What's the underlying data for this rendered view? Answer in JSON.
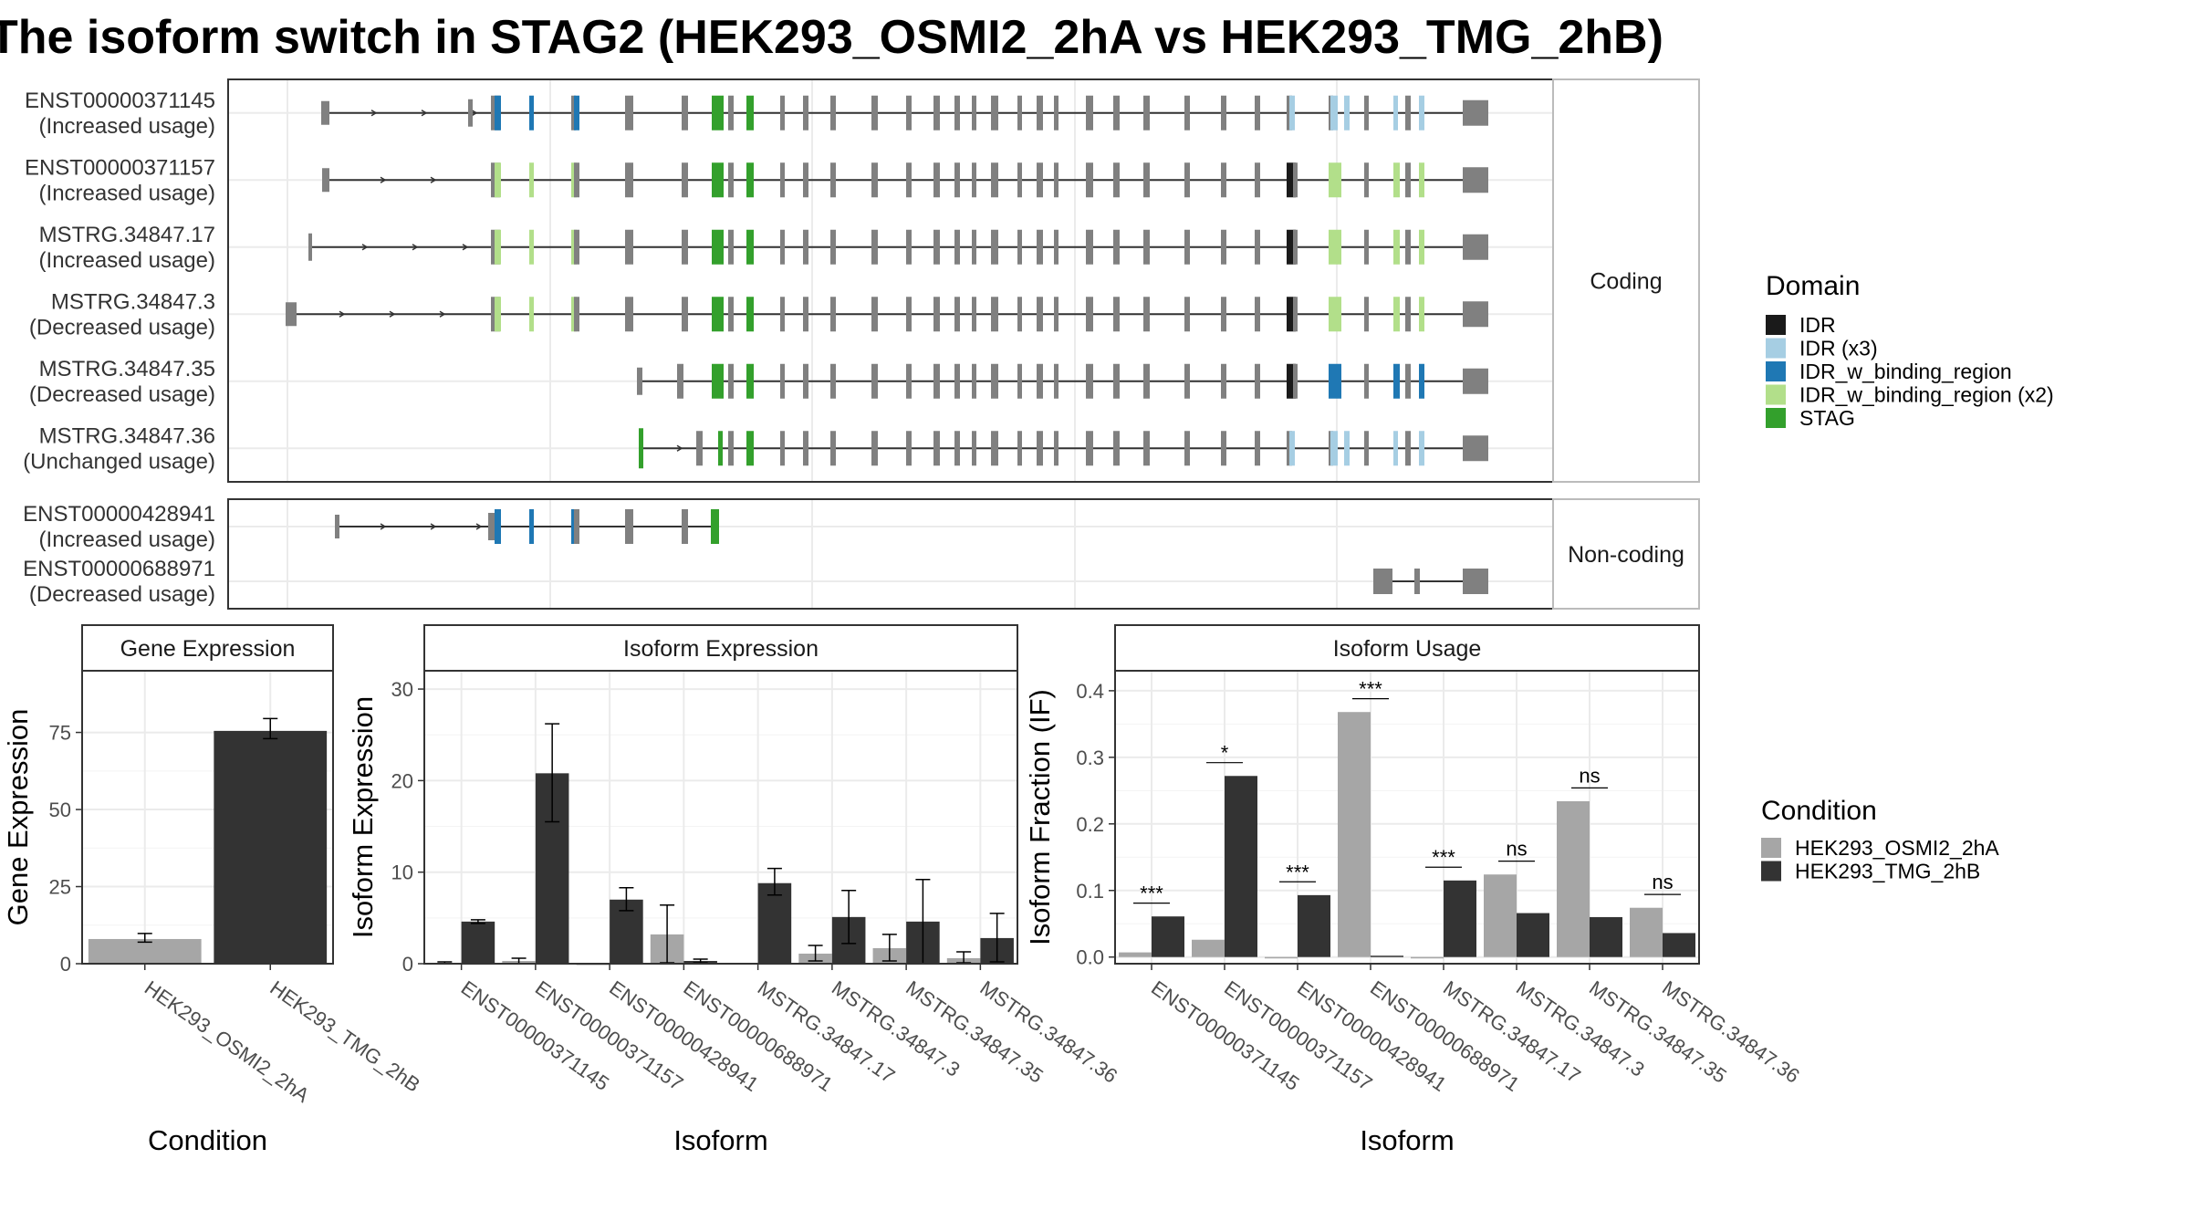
{
  "title": "The isoform switch in STAG2 (HEK293_OSMI2_2hA vs HEK293_TMG_2hB)",
  "colors": {
    "IDR": "#1a1a1a",
    "IDR (x3)": "#a6cee3",
    "IDR_w_binding_region": "#1f78b4",
    "IDR_w_binding_region (x2)": "#b2df8a",
    "STAG": "#33a02c",
    "exon": "#808080",
    "cond_a": "#a6a6a6",
    "cond_b": "#333333"
  },
  "chart_data": [
    {
      "type": "gene-structure",
      "facets": [
        "Coding",
        "Non-coding"
      ],
      "transcripts": [
        {
          "id": "ENST00000371145",
          "usage": "(Increased usage)",
          "facet": "Coding"
        },
        {
          "id": "ENST00000371157",
          "usage": "(Increased usage)",
          "facet": "Coding"
        },
        {
          "id": "MSTRG.34847.17",
          "usage": "(Increased usage)",
          "facet": "Coding"
        },
        {
          "id": "MSTRG.34847.3",
          "usage": "(Decreased usage)",
          "facet": "Coding"
        },
        {
          "id": "MSTRG.34847.35",
          "usage": "(Decreased usage)",
          "facet": "Coding"
        },
        {
          "id": "MSTRG.34847.36",
          "usage": "(Unchanged usage)",
          "facet": "Coding"
        },
        {
          "id": "ENST00000428941",
          "usage": "(Increased usage)",
          "facet": "Non-coding"
        },
        {
          "id": "ENST00000688971",
          "usage": "(Decreased usage)",
          "facet": "Non-coding"
        }
      ],
      "legend": {
        "title": "Domain",
        "items": [
          "IDR",
          "IDR (x3)",
          "IDR_w_binding_region",
          "IDR_w_binding_region (x2)",
          "STAG"
        ]
      }
    },
    {
      "type": "bar",
      "title": "Gene Expression",
      "xlabel": "Condition",
      "ylabel": "Gene Expression",
      "categories": [
        "HEK293_OSMI2_2hA",
        "HEK293_TMG_2hB"
      ],
      "values": [
        8,
        75.5
      ],
      "errors": [
        [
          7,
          9.8
        ],
        [
          73,
          79.5
        ]
      ],
      "ylim": [
        0,
        95
      ],
      "yticks": [
        0,
        25,
        50,
        75
      ]
    },
    {
      "type": "bar",
      "title": "Isoform Expression",
      "xlabel": "Isoform",
      "ylabel": "Isoform Expression",
      "categories": [
        "ENST00000371145",
        "ENST00000371157",
        "ENST00000428941",
        "ENST00000688971",
        "MSTRG.34847.17",
        "MSTRG.34847.3",
        "MSTRG.34847.35",
        "MSTRG.34847.36"
      ],
      "series": [
        {
          "name": "HEK293_OSMI2_2hA",
          "values": [
            0.1,
            0.3,
            0,
            3.2,
            0.1,
            1.1,
            1.7,
            0.6
          ],
          "errors": [
            [
              0,
              0.2
            ],
            [
              0,
              0.6
            ],
            null,
            [
              0.1,
              6.4
            ],
            null,
            [
              0.3,
              2
            ],
            [
              0.3,
              3.2
            ],
            [
              0.1,
              1.3
            ]
          ]
        },
        {
          "name": "HEK293_TMG_2hB",
          "values": [
            4.6,
            20.8,
            7,
            0.3,
            8.8,
            5.1,
            4.6,
            2.8
          ],
          "errors": [
            [
              4.4,
              4.8
            ],
            [
              15.5,
              26.2
            ],
            [
              5.8,
              8.3
            ],
            [
              0.1,
              0.5
            ],
            [
              7.5,
              10.4
            ],
            [
              2.2,
              8
            ],
            [
              0,
              9.2
            ],
            [
              0.2,
              5.5
            ]
          ]
        }
      ],
      "ylim": [
        0,
        32
      ],
      "yticks": [
        0,
        10,
        20,
        30
      ]
    },
    {
      "type": "bar",
      "title": "Isoform Usage",
      "xlabel": "Isoform",
      "ylabel": "Isoform Fraction (IF)",
      "categories": [
        "ENST00000371145",
        "ENST00000371157",
        "ENST00000428941",
        "ENST00000688971",
        "MSTRG.34847.17",
        "MSTRG.34847.3",
        "MSTRG.34847.35",
        "MSTRG.34847.36"
      ],
      "series": [
        {
          "name": "HEK293_OSMI2_2hA",
          "values": [
            0.007,
            0.026,
            0,
            0.368,
            0,
            0.124,
            0.234,
            0.074
          ]
        },
        {
          "name": "HEK293_TMG_2hB",
          "values": [
            0.061,
            0.272,
            0.093,
            0.002,
            0.115,
            0.066,
            0.06,
            0.036
          ]
        }
      ],
      "significance": [
        "***",
        "*",
        "***",
        "***",
        "***",
        "ns",
        "ns",
        "ns"
      ],
      "ylim": [
        -0.01,
        0.43
      ],
      "yticks": [
        0.0,
        0.1,
        0.2,
        0.3,
        0.4
      ],
      "legend": {
        "title": "Condition",
        "items": [
          "HEK293_OSMI2_2hA",
          "HEK293_TMG_2hB"
        ]
      }
    }
  ]
}
